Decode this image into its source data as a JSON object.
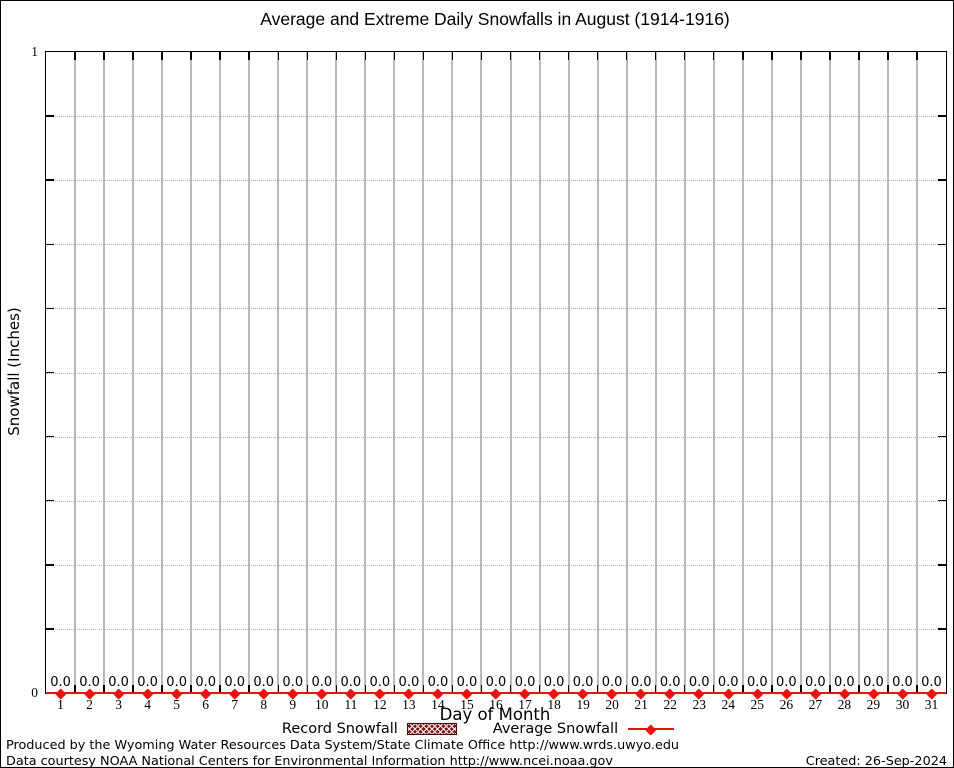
{
  "chart_data": {
    "type": "line",
    "title": "Average and Extreme Daily Snowfalls in August (1914-1916)",
    "xlabel": "Day of Month",
    "ylabel": "Snowfall (Inches)",
    "ylim": [
      0,
      1
    ],
    "ytick_labels": {
      "top": "1",
      "bottom": "0"
    },
    "y_minor_grid_step": 0.1,
    "grid": {
      "vertical_solid": true,
      "horizontal_dotted": true,
      "color": "#b9b9b9"
    },
    "categories": [
      1,
      2,
      3,
      4,
      5,
      6,
      7,
      8,
      9,
      10,
      11,
      12,
      13,
      14,
      15,
      16,
      17,
      18,
      19,
      20,
      21,
      22,
      23,
      24,
      25,
      26,
      27,
      28,
      29,
      30,
      31
    ],
    "series": [
      {
        "name": "Record Snowfall",
        "style": "hatched-bar",
        "color": "#7e1818",
        "values": [
          0,
          0,
          0,
          0,
          0,
          0,
          0,
          0,
          0,
          0,
          0,
          0,
          0,
          0,
          0,
          0,
          0,
          0,
          0,
          0,
          0,
          0,
          0,
          0,
          0,
          0,
          0,
          0,
          0,
          0,
          0
        ]
      },
      {
        "name": "Average Snowfall",
        "style": "line-with-point-markers",
        "color": "#ee1111",
        "values": [
          0,
          0,
          0,
          0,
          0,
          0,
          0,
          0,
          0,
          0,
          0,
          0,
          0,
          0,
          0,
          0,
          0,
          0,
          0,
          0,
          0,
          0,
          0,
          0,
          0,
          0,
          0,
          0,
          0,
          0,
          0
        ]
      }
    ],
    "point_value_labels": [
      "0.0",
      "0.0",
      "0.0",
      "0.0",
      "0.0",
      "0.0",
      "0.0",
      "0.0",
      "0.0",
      "0.0",
      "0.0",
      "0.0",
      "0.0",
      "0.0",
      "0.0",
      "0.0",
      "0.0",
      "0.0",
      "0.0",
      "0.0",
      "0.0",
      "0.0",
      "0.0",
      "0.0",
      "0.0",
      "0.0",
      "0.0",
      "0.0",
      "0.0",
      "0.0",
      "0.0"
    ],
    "legend_position": "bottom-center"
  },
  "legend": {
    "record_label": "Record Snowfall",
    "average_label": "Average Snowfall"
  },
  "footer": {
    "line1": "Produced by the Wyoming Water Resources Data System/State Climate Office http://www.wrds.uwyo.edu",
    "line2": "Data courtesy NOAA National Centers for Environmental Information http://www.ncei.noaa.gov",
    "created": "Created: 26-Sep-2024"
  },
  "colors": {
    "average_line": "#ee1111",
    "record_fill": "#7e1818",
    "grid": "#b9b9b9",
    "plot_border": "#000000"
  }
}
